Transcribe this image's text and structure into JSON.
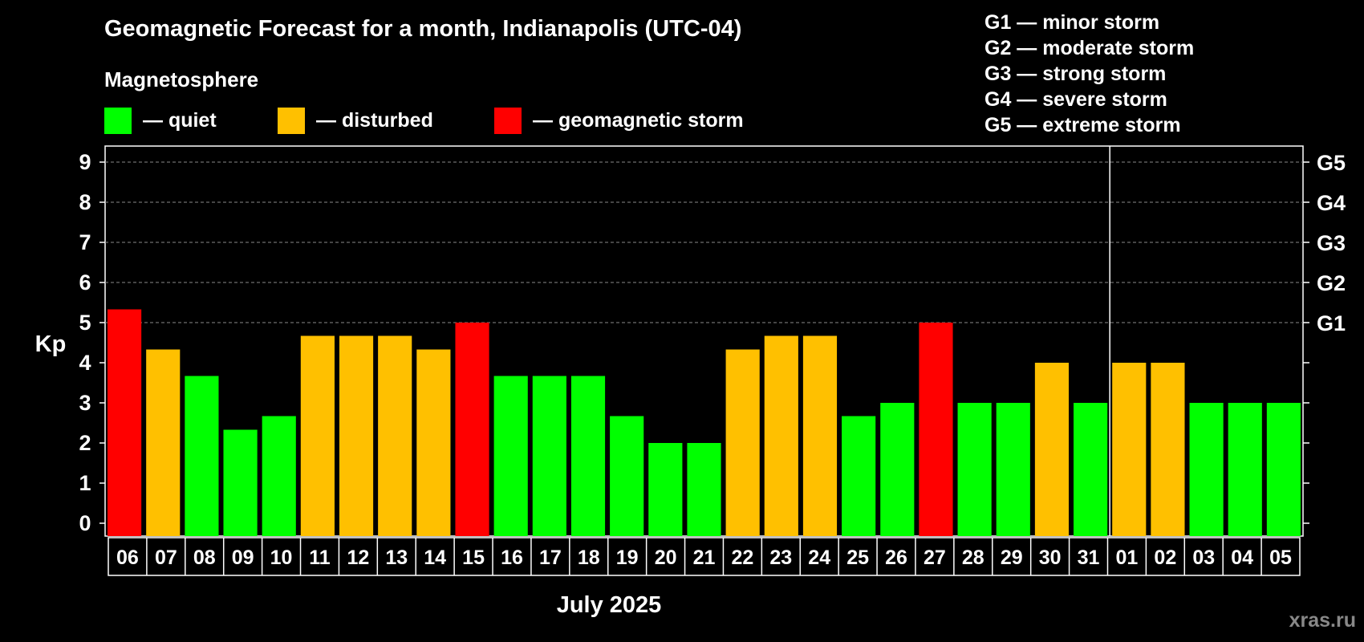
{
  "chart_data": {
    "type": "bar",
    "title": "Geomagnetic Forecast for a month, Indianapolis (UTC-04)",
    "legend_title": "Magnetosphere",
    "legend": [
      {
        "key": "quiet",
        "label": "— quiet",
        "color": "#00ff00"
      },
      {
        "key": "disturbed",
        "label": "— disturbed",
        "color": "#ffc000"
      },
      {
        "key": "storm",
        "label": "— geomagnetic storm",
        "color": "#ff0000"
      }
    ],
    "storm_levels": [
      "G1 — minor storm",
      "G2 — moderate storm",
      "G3 — strong storm",
      "G4 — severe storm",
      "G5 — extreme storm"
    ],
    "ylabel": "Kp",
    "xlabel": "July 2025",
    "ylim": [
      0,
      9
    ],
    "yticks": [
      "0",
      "1",
      "2",
      "3",
      "4",
      "5",
      "6",
      "7",
      "8",
      "9"
    ],
    "right_ticks": [
      {
        "kp": 5,
        "label": "G1"
      },
      {
        "kp": 6,
        "label": "G2"
      },
      {
        "kp": 7,
        "label": "G3"
      },
      {
        "kp": 8,
        "label": "G4"
      },
      {
        "kp": 9,
        "label": "G5"
      }
    ],
    "grid": true,
    "month_break_after_index": 25,
    "categories": [
      "06",
      "07",
      "08",
      "09",
      "10",
      "11",
      "12",
      "13",
      "14",
      "15",
      "16",
      "17",
      "18",
      "19",
      "20",
      "21",
      "22",
      "23",
      "24",
      "25",
      "26",
      "27",
      "28",
      "29",
      "30",
      "31",
      "01",
      "02",
      "03",
      "04",
      "05"
    ],
    "values": [
      5.33,
      4.33,
      3.67,
      2.33,
      2.67,
      4.67,
      4.67,
      4.67,
      4.33,
      5.0,
      3.67,
      3.67,
      3.67,
      2.67,
      2.0,
      2.0,
      4.33,
      4.67,
      4.67,
      2.67,
      3.0,
      5.0,
      3.0,
      3.0,
      4.0,
      3.0,
      4.0,
      4.0,
      3.0,
      3.0,
      3.0
    ],
    "status": [
      "storm",
      "disturbed",
      "quiet",
      "quiet",
      "quiet",
      "disturbed",
      "disturbed",
      "disturbed",
      "disturbed",
      "storm",
      "quiet",
      "quiet",
      "quiet",
      "quiet",
      "quiet",
      "quiet",
      "disturbed",
      "disturbed",
      "disturbed",
      "quiet",
      "quiet",
      "storm",
      "quiet",
      "quiet",
      "disturbed",
      "quiet",
      "disturbed",
      "disturbed",
      "quiet",
      "quiet",
      "quiet"
    ]
  },
  "watermark": "xras.ru"
}
